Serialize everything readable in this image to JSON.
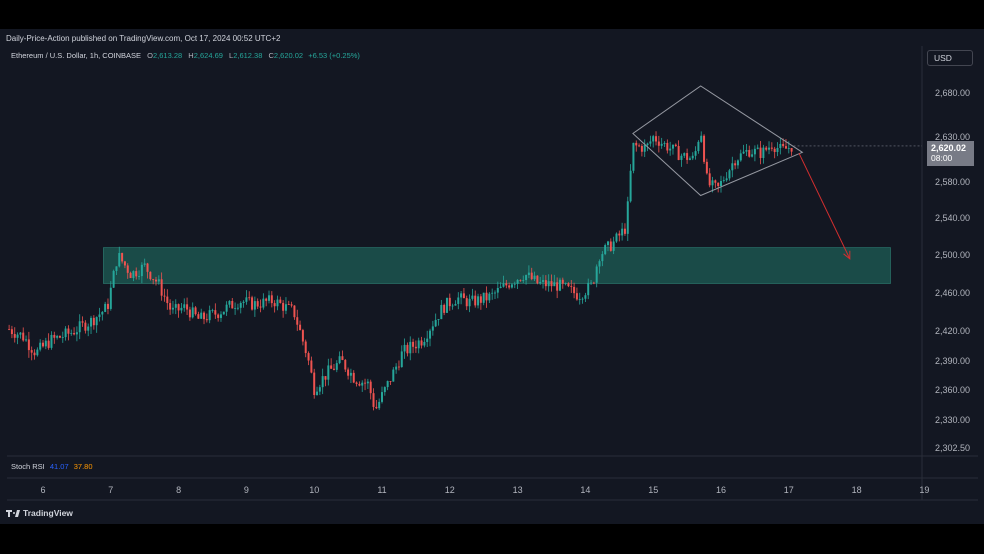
{
  "header": {
    "publish_text": "Daily-Price-Action published on TradingView.com, Oct 17, 2024 00:52 UTC+2"
  },
  "symbol": {
    "name": "Ethereum / U.S. Dollar, 1h, COINBASE",
    "open_label": "O",
    "open": "2,613.28",
    "high_label": "H",
    "high": "2,624.69",
    "low_label": "L",
    "low": "2,612.38",
    "close_label": "C",
    "close": "2,620.02",
    "change": "+6.53 (+0.25%)"
  },
  "currency": "USD",
  "price_badge": {
    "price": "2,620.02",
    "countdown": "08:00"
  },
  "indicator": {
    "name": "Stoch RSI",
    "k": "41.07",
    "d": "37.80"
  },
  "footer": {
    "brand": "TradingView"
  },
  "colors": {
    "background": "#131722",
    "up": "#26a69a",
    "down": "#ef5350",
    "zone": "#1e5e56",
    "pattern": "#9598a1",
    "arrow": "#d32f2f"
  },
  "chart_data": {
    "type": "candlestick",
    "x_axis_labels": [
      "6",
      "7",
      "8",
      "9",
      "10",
      "11",
      "12",
      "13",
      "14",
      "15",
      "16",
      "17",
      "18",
      "19"
    ],
    "y_axis_labels": [
      "2,680.00",
      "2,630.00",
      "2,580.00",
      "2,540.00",
      "2,500.00",
      "2,460.00",
      "2,420.00",
      "2,390.00",
      "2,360.00",
      "2,330.00",
      "2,302.50"
    ],
    "y_axis_values": [
      2680,
      2630,
      2580,
      2540,
      2500,
      2460,
      2420,
      2390,
      2360,
      2330,
      2302.5
    ],
    "x_range_days": [
      5.5,
      19
    ],
    "series_path": [
      [
        5.5,
        2422
      ],
      [
        5.7,
        2415
      ],
      [
        5.9,
        2398
      ],
      [
        6.1,
        2410
      ],
      [
        6.4,
        2418
      ],
      [
        6.7,
        2430
      ],
      [
        6.95,
        2445
      ],
      [
        7.1,
        2500
      ],
      [
        7.3,
        2480
      ],
      [
        7.5,
        2488
      ],
      [
        7.7,
        2470
      ],
      [
        7.9,
        2440
      ],
      [
        8.1,
        2445
      ],
      [
        8.3,
        2432
      ],
      [
        8.6,
        2440
      ],
      [
        8.9,
        2452
      ],
      [
        9.1,
        2448
      ],
      [
        9.4,
        2452
      ],
      [
        9.7,
        2440
      ],
      [
        9.9,
        2395
      ],
      [
        10.0,
        2362
      ],
      [
        10.2,
        2378
      ],
      [
        10.4,
        2390
      ],
      [
        10.6,
        2372
      ],
      [
        10.8,
        2366
      ],
      [
        10.9,
        2340
      ],
      [
        11.1,
        2368
      ],
      [
        11.3,
        2398
      ],
      [
        11.6,
        2412
      ],
      [
        11.9,
        2445
      ],
      [
        12.1,
        2455
      ],
      [
        12.3,
        2450
      ],
      [
        12.6,
        2456
      ],
      [
        12.9,
        2472
      ],
      [
        13.1,
        2480
      ],
      [
        13.3,
        2470
      ],
      [
        13.6,
        2468
      ],
      [
        13.9,
        2458
      ],
      [
        14.1,
        2468
      ],
      [
        14.2,
        2500
      ],
      [
        14.4,
        2512
      ],
      [
        14.6,
        2530
      ],
      [
        14.7,
        2620
      ],
      [
        14.9,
        2618
      ],
      [
        15.0,
        2630
      ],
      [
        15.2,
        2620
      ],
      [
        15.4,
        2610
      ],
      [
        15.6,
        2605
      ],
      [
        15.7,
        2640
      ],
      [
        15.8,
        2578
      ],
      [
        15.95,
        2572
      ],
      [
        16.2,
        2605
      ],
      [
        16.4,
        2615
      ],
      [
        16.6,
        2612
      ],
      [
        16.75,
        2622
      ],
      [
        16.9,
        2615
      ],
      [
        17.05,
        2620
      ]
    ],
    "demand_zone": {
      "y_top": 2508,
      "y_bottom": 2470,
      "x_start": 6.95,
      "x_end": 18.5
    },
    "diamond_pattern": [
      [
        14.7,
        2634
      ],
      [
        15.7,
        2688
      ],
      [
        17.2,
        2613
      ],
      [
        15.7,
        2565
      ]
    ],
    "projection_arrow": {
      "from": [
        17.15,
        2612
      ],
      "to": [
        17.9,
        2496
      ]
    },
    "last_price": 2620.02
  }
}
